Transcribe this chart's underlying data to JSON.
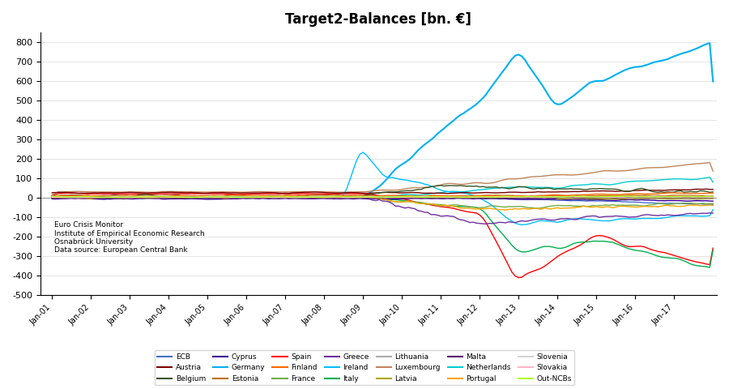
{
  "title": "Target2-Balances [bn. €]",
  "ylim": [
    -500,
    850
  ],
  "yticks": [
    -500,
    -400,
    -300,
    -200,
    -100,
    0,
    100,
    200,
    300,
    400,
    500,
    600,
    700,
    800
  ],
  "xtick_labels": [
    "Jan-01",
    "Jan-02",
    "Jan-03",
    "Jan-04",
    "Jan-05",
    "Jan-06",
    "Jan-07",
    "Jan-08",
    "Jan-09",
    "Jan-10",
    "Jan-11",
    "Jan-12",
    "Jan-13",
    "Jan-14",
    "Jan-15",
    "Jan-16",
    "Jan-17"
  ],
  "annotation": "Euro Crisis Monitor\nInstitute of Empirical Economic Research\nOsnabrück University\nData source: European Central Bank",
  "legend_entries": [
    {
      "label": "ECB",
      "color": "#4472C4"
    },
    {
      "label": "Austria",
      "color": "#7B0000"
    },
    {
      "label": "Belgium",
      "color": "#375623"
    },
    {
      "label": "Cyprus",
      "color": "#3D0099"
    },
    {
      "label": "Germany",
      "color": "#00B0F0"
    },
    {
      "label": "Estonia",
      "color": "#C07000"
    },
    {
      "label": "Spain",
      "color": "#FF0000"
    },
    {
      "label": "Finland",
      "color": "#FF6600"
    },
    {
      "label": "France",
      "color": "#70AD47"
    },
    {
      "label": "Greece",
      "color": "#7030A0"
    },
    {
      "label": "Ireland",
      "color": "#00BFFF"
    },
    {
      "label": "Italy",
      "color": "#00B050"
    },
    {
      "label": "Lithuania",
      "color": "#A9A9A9"
    },
    {
      "label": "Luxembourg",
      "color": "#C0845A"
    },
    {
      "label": "Latvia",
      "color": "#AAAA00"
    },
    {
      "label": "Malta",
      "color": "#5C0070"
    },
    {
      "label": "Netherlands",
      "color": "#00CED1"
    },
    {
      "label": "Portugal",
      "color": "#FFA500"
    },
    {
      "label": "Slovenia",
      "color": "#D3D3D3"
    },
    {
      "label": "Slovakia",
      "color": "#FFB6C1"
    },
    {
      "label": "Out-NCBs",
      "color": "#ADFF2F"
    }
  ],
  "background_color": "#FFFFFF",
  "figsize": [
    9.0,
    4.8
  ],
  "dpi": 100
}
